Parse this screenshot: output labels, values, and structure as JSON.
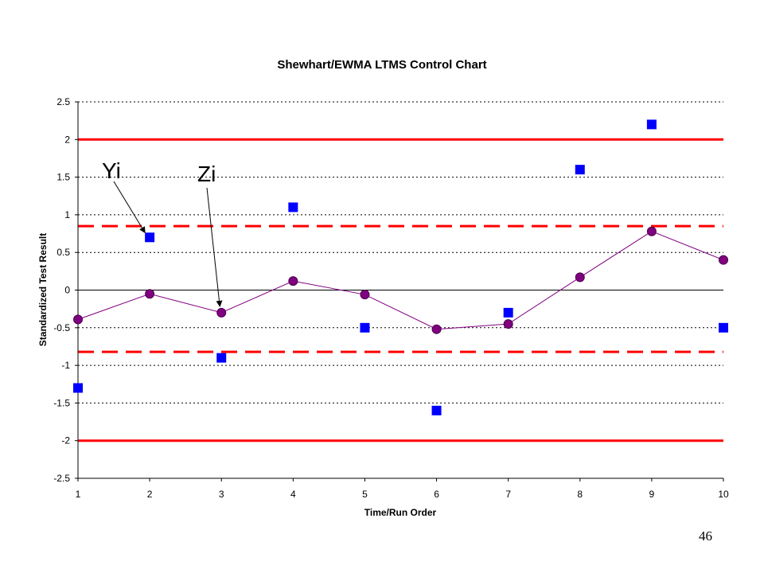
{
  "page": {
    "number": "46"
  },
  "chart_data": {
    "type": "scatter",
    "title": "Shewhart/EWMA LTMS Control Chart",
    "xlabel": "Time/Run Order",
    "ylabel": "Standardized Test Result",
    "xlim": [
      1,
      10
    ],
    "ylim": [
      -2.5,
      2.5
    ],
    "x_ticks": [
      1,
      2,
      3,
      4,
      5,
      6,
      7,
      8,
      9,
      10
    ],
    "y_ticks": [
      2.5,
      2,
      1.5,
      1,
      0.5,
      0,
      -0.5,
      -1,
      -1.5,
      -2,
      -2.5
    ],
    "y_tick_labels": [
      "2.5",
      "2",
      "1.5",
      "1",
      "0.5",
      "0",
      "-0.5",
      "-1",
      "-1.5",
      "-2",
      "-2.5"
    ],
    "grid": {
      "horizontal": true,
      "style": "dotted"
    },
    "series": [
      {
        "name": "Yi",
        "style": "square-markers",
        "color": "#0000ff",
        "x": [
          1,
          2,
          3,
          4,
          5,
          6,
          7,
          8,
          9,
          10
        ],
        "y": [
          -1.3,
          0.7,
          -0.9,
          1.1,
          -0.5,
          -1.6,
          -0.3,
          1.6,
          2.2,
          -0.5
        ]
      },
      {
        "name": "Zi",
        "style": "line-circle-markers",
        "color": "#800080",
        "x": [
          1,
          2,
          3,
          4,
          5,
          6,
          7,
          8,
          9,
          10
        ],
        "y": [
          -0.39,
          -0.05,
          -0.3,
          0.12,
          -0.06,
          -0.52,
          -0.45,
          0.17,
          0.78,
          0.4
        ]
      }
    ],
    "reference_lines": [
      {
        "y": 2.0,
        "style": "solid",
        "color": "#ff0000"
      },
      {
        "y": -2.0,
        "style": "solid",
        "color": "#ff0000"
      },
      {
        "y": 0.85,
        "style": "dashed",
        "color": "#ff0000"
      },
      {
        "y": -0.82,
        "style": "dashed",
        "color": "#ff0000"
      },
      {
        "y": 0,
        "style": "solid",
        "color": "#000000"
      }
    ],
    "annotations": [
      {
        "text": "Yi",
        "points_to": {
          "x": 2,
          "y": 0.7
        }
      },
      {
        "text": "Zi",
        "points_to": {
          "x": 3,
          "y": -0.3
        }
      }
    ]
  }
}
